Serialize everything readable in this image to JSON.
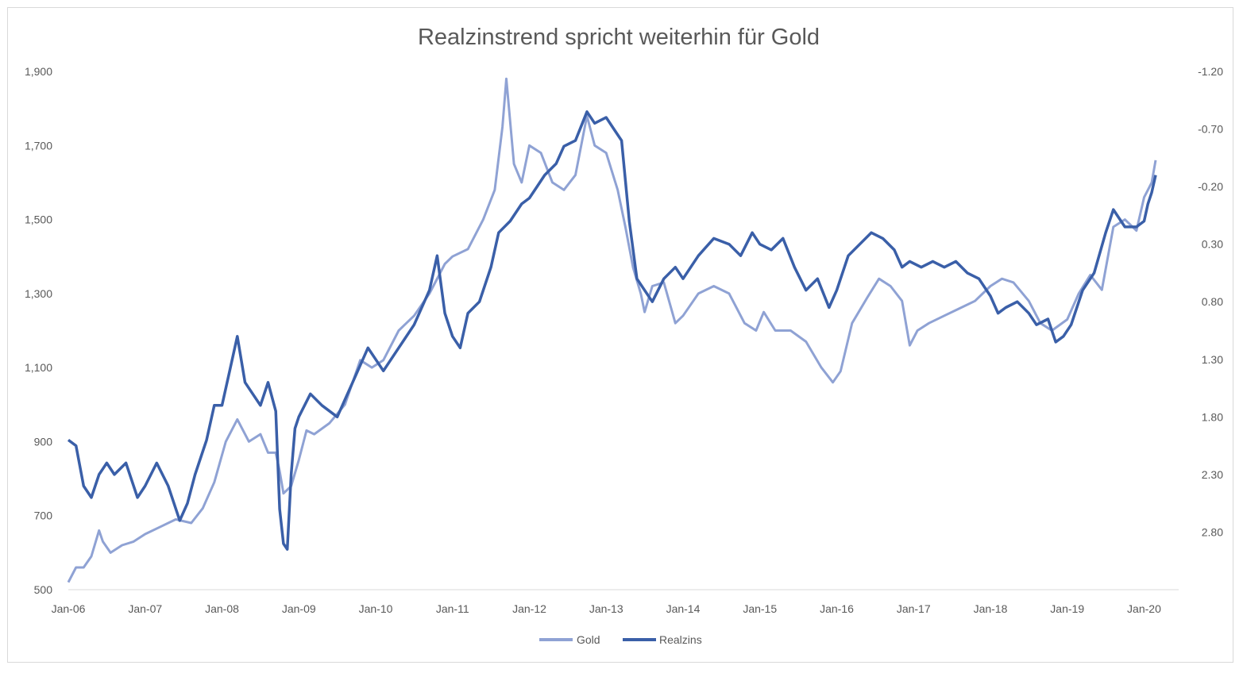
{
  "chart_data": {
    "type": "line",
    "title": "Realzinstrend spricht weiterhin für Gold",
    "x_tick_labels": [
      "Jan-06",
      "Jan-07",
      "Jan-08",
      "Jan-09",
      "Jan-10",
      "Jan-11",
      "Jan-12",
      "Jan-13",
      "Jan-14",
      "Jan-15",
      "Jan-16",
      "Jan-17",
      "Jan-18",
      "Jan-19",
      "Jan-20"
    ],
    "x_range": [
      2006.0,
      2020.45
    ],
    "y_left": {
      "range": [
        500,
        1900
      ],
      "ticks": [
        "500",
        "700",
        "900",
        "1,100",
        "1,300",
        "1,500",
        "1,700",
        "1,900"
      ],
      "tick_values": [
        500,
        700,
        900,
        1100,
        1300,
        1500,
        1700,
        1900
      ]
    },
    "y_right": {
      "range": [
        -1.2,
        3.3
      ],
      "inverted": true,
      "ticks": [
        "-1.20",
        "-0.70",
        "-0.20",
        "0.30",
        "0.80",
        "1.30",
        "1.80",
        "2.30",
        "2.80"
      ],
      "tick_values": [
        -1.2,
        -0.7,
        -0.2,
        0.3,
        0.8,
        1.3,
        1.8,
        2.3,
        2.8
      ]
    },
    "legend_position": "bottom",
    "colors": {
      "gold": "#8fa2d4",
      "realzins": "#3a5fa8",
      "axis": "#d9d9d9",
      "text": "#595959"
    },
    "series": [
      {
        "name": "Gold",
        "axis": "left",
        "x": [
          2006.0,
          2006.1,
          2006.2,
          2006.3,
          2006.4,
          2006.45,
          2006.55,
          2006.7,
          2006.85,
          2007.0,
          2007.2,
          2007.4,
          2007.6,
          2007.75,
          2007.9,
          2008.05,
          2008.2,
          2008.35,
          2008.5,
          2008.6,
          2008.7,
          2008.75,
          2008.8,
          2008.9,
          2009.0,
          2009.1,
          2009.2,
          2009.4,
          2009.6,
          2009.8,
          2009.95,
          2010.1,
          2010.3,
          2010.5,
          2010.7,
          2010.9,
          2011.0,
          2011.2,
          2011.4,
          2011.55,
          2011.65,
          2011.7,
          2011.8,
          2011.9,
          2012.0,
          2012.15,
          2012.3,
          2012.45,
          2012.6,
          2012.75,
          2012.85,
          2013.0,
          2013.15,
          2013.25,
          2013.35,
          2013.45,
          2013.5,
          2013.6,
          2013.75,
          2013.9,
          2014.0,
          2014.2,
          2014.4,
          2014.6,
          2014.8,
          2014.95,
          2015.05,
          2015.2,
          2015.4,
          2015.6,
          2015.8,
          2015.95,
          2016.05,
          2016.2,
          2016.4,
          2016.55,
          2016.7,
          2016.85,
          2016.95,
          2017.05,
          2017.2,
          2017.4,
          2017.6,
          2017.8,
          2018.0,
          2018.15,
          2018.3,
          2018.5,
          2018.65,
          2018.8,
          2019.0,
          2019.15,
          2019.3,
          2019.45,
          2019.6,
          2019.75,
          2019.9,
          2020.0,
          2020.05,
          2020.1,
          2020.15
        ],
        "y": [
          520,
          560,
          560,
          590,
          660,
          630,
          600,
          620,
          630,
          650,
          670,
          690,
          680,
          720,
          790,
          900,
          960,
          900,
          920,
          870,
          870,
          820,
          760,
          780,
          850,
          930,
          920,
          950,
          1000,
          1120,
          1100,
          1120,
          1200,
          1240,
          1300,
          1380,
          1400,
          1420,
          1500,
          1580,
          1750,
          1880,
          1650,
          1600,
          1700,
          1680,
          1600,
          1580,
          1620,
          1780,
          1700,
          1680,
          1580,
          1480,
          1370,
          1300,
          1250,
          1320,
          1330,
          1220,
          1240,
          1300,
          1320,
          1300,
          1220,
          1200,
          1250,
          1200,
          1200,
          1170,
          1100,
          1060,
          1090,
          1220,
          1290,
          1340,
          1320,
          1280,
          1160,
          1200,
          1220,
          1240,
          1260,
          1280,
          1320,
          1340,
          1330,
          1280,
          1220,
          1200,
          1230,
          1300,
          1350,
          1310,
          1480,
          1500,
          1470,
          1560,
          1580,
          1600,
          1660
        ]
      },
      {
        "name": "Realzins",
        "axis": "right",
        "x": [
          2006.0,
          2006.1,
          2006.2,
          2006.3,
          2006.4,
          2006.5,
          2006.6,
          2006.75,
          2006.9,
          2007.0,
          2007.15,
          2007.3,
          2007.45,
          2007.55,
          2007.65,
          2007.8,
          2007.9,
          2008.0,
          2008.1,
          2008.2,
          2008.3,
          2008.4,
          2008.5,
          2008.6,
          2008.7,
          2008.75,
          2008.8,
          2008.85,
          2008.9,
          2008.95,
          2009.0,
          2009.15,
          2009.3,
          2009.5,
          2009.7,
          2009.9,
          2010.1,
          2010.3,
          2010.5,
          2010.7,
          2010.8,
          2010.9,
          2011.0,
          2011.1,
          2011.2,
          2011.35,
          2011.5,
          2011.6,
          2011.75,
          2011.9,
          2012.0,
          2012.1,
          2012.2,
          2012.35,
          2012.45,
          2012.6,
          2012.75,
          2012.85,
          2013.0,
          2013.1,
          2013.2,
          2013.3,
          2013.4,
          2013.5,
          2013.6,
          2013.75,
          2013.9,
          2014.0,
          2014.2,
          2014.4,
          2014.6,
          2014.75,
          2014.9,
          2015.0,
          2015.15,
          2015.3,
          2015.45,
          2015.6,
          2015.75,
          2015.9,
          2016.0,
          2016.15,
          2016.3,
          2016.45,
          2016.6,
          2016.75,
          2016.85,
          2016.95,
          2017.1,
          2017.25,
          2017.4,
          2017.55,
          2017.7,
          2017.85,
          2018.0,
          2018.1,
          2018.2,
          2018.35,
          2018.5,
          2018.6,
          2018.75,
          2018.85,
          2018.95,
          2019.05,
          2019.2,
          2019.35,
          2019.5,
          2019.6,
          2019.75,
          2019.9,
          2020.0,
          2020.05,
          2020.1,
          2020.15
        ],
        "y": [
          2.0,
          2.05,
          2.4,
          2.5,
          2.3,
          2.2,
          2.3,
          2.2,
          2.5,
          2.4,
          2.2,
          2.4,
          2.7,
          2.55,
          2.3,
          2.0,
          1.7,
          1.7,
          1.4,
          1.1,
          1.5,
          1.6,
          1.7,
          1.5,
          1.75,
          2.6,
          2.9,
          2.95,
          2.3,
          1.9,
          1.8,
          1.6,
          1.7,
          1.8,
          1.5,
          1.2,
          1.4,
          1.2,
          1.0,
          0.7,
          0.4,
          0.9,
          1.1,
          1.2,
          0.9,
          0.8,
          0.5,
          0.2,
          0.1,
          -0.05,
          -0.1,
          -0.2,
          -0.3,
          -0.4,
          -0.55,
          -0.6,
          -0.85,
          -0.75,
          -0.8,
          -0.7,
          -0.6,
          0.1,
          0.6,
          0.7,
          0.8,
          0.6,
          0.5,
          0.6,
          0.4,
          0.25,
          0.3,
          0.4,
          0.2,
          0.3,
          0.35,
          0.25,
          0.5,
          0.7,
          0.6,
          0.85,
          0.7,
          0.4,
          0.3,
          0.2,
          0.25,
          0.35,
          0.5,
          0.45,
          0.5,
          0.45,
          0.5,
          0.45,
          0.55,
          0.6,
          0.75,
          0.9,
          0.85,
          0.8,
          0.9,
          1.0,
          0.95,
          1.15,
          1.1,
          1.0,
          0.7,
          0.55,
          0.2,
          0.0,
          0.15,
          0.15,
          0.1,
          -0.05,
          -0.15,
          -0.3
        ]
      }
    ]
  }
}
